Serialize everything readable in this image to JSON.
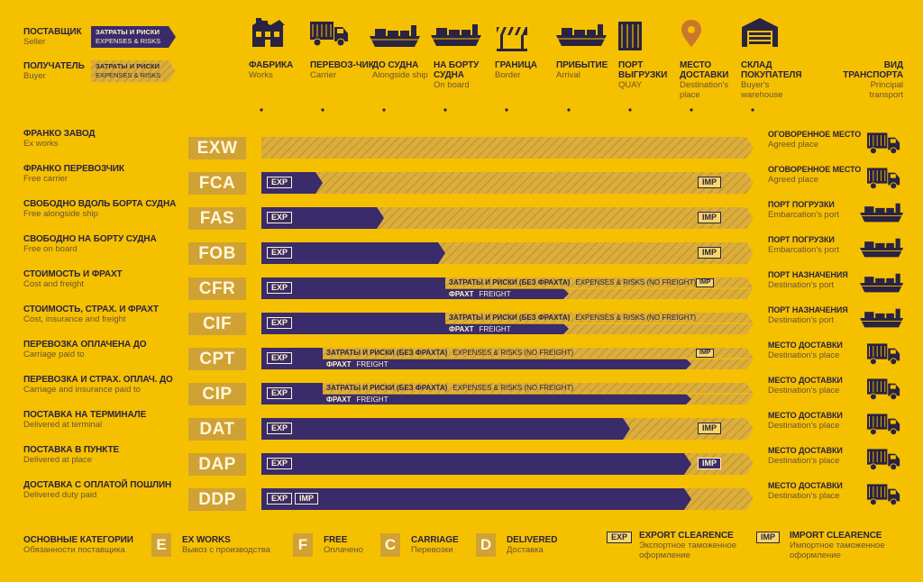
{
  "legend_top": {
    "seller": {
      "ru": "ПОСТАВЩИК",
      "en": "Seller"
    },
    "buyer": {
      "ru": "ПОЛУЧАТЕЛЬ",
      "en": "Buyer"
    },
    "tag_ru": "ЗАТРАТЫ И РИСКИ",
    "tag_en": "EXPENSES & RISKS"
  },
  "stages": [
    {
      "id": "works",
      "ru": "ФАБРИКА",
      "en": "Works",
      "icon": "factory-icon"
    },
    {
      "id": "carrier",
      "ru": "ПЕРЕВОЗ-ЧИК",
      "en": "Carrier",
      "icon": "truck-icon"
    },
    {
      "id": "alongside",
      "ru": "ДО СУДНА",
      "en": "Alongside ship",
      "icon": "ship-icon"
    },
    {
      "id": "onboard",
      "ru": "НА БОРТУ СУДНА",
      "en": "On board",
      "icon": "ship-icon"
    },
    {
      "id": "border",
      "ru": "ГРАНИЦА",
      "en": "Border",
      "icon": "barrier-icon"
    },
    {
      "id": "arrival",
      "ru": "ПРИБЫТИЕ",
      "en": "Arrival",
      "icon": "ship-icon"
    },
    {
      "id": "quay",
      "ru": "ПОРТ ВЫГРУЗКИ",
      "en": "QUAY",
      "icon": "container-icon"
    },
    {
      "id": "destination",
      "ru": "МЕСТО ДОСТАВКИ",
      "en": "Destination's place",
      "icon": "map-pin-icon"
    },
    {
      "id": "warehouse",
      "ru": "СКЛАД ПОКУПАТЕЛЯ",
      "en": "Buyer's warehouse",
      "icon": "warehouse-icon"
    }
  ],
  "transport_header": {
    "ru": "ВИД ТРАНСПОРТА",
    "en": "Principal transport"
  },
  "segment_labels": {
    "costs_ru": "ЗАТРАТЫ И РИСКИ (БЕЗ ФРАХТА)",
    "costs_en": "EXPENSES & RISKS (NO FREIGHT)",
    "freight_ru": "ФРАХТ",
    "freight_en": "FREIGHT",
    "exp": "EXP",
    "imp": "IMP"
  },
  "terms": [
    {
      "code": "EXW",
      "ru": "ФРАНКО ЗАВОД",
      "en": "Ex works",
      "seller_until": 0,
      "exp": false,
      "imp": false,
      "split": false,
      "dest_ru": "ОГОВОРЕННОЕ МЕСТО",
      "dest_en": "Agreed place",
      "transport": "truck-icon"
    },
    {
      "code": "FCA",
      "ru": "ФРАНКО ПЕРЕВОЗЧИК",
      "en": "Free carrier",
      "seller_until": 1,
      "exp": true,
      "imp": true,
      "split": false,
      "dest_ru": "ОГОВОРЕННОЕ МЕСТО",
      "dest_en": "Agreed place",
      "transport": "truck-icon"
    },
    {
      "code": "FAS",
      "ru": "СВОБОДНО ВДОЛЬ БОРТА СУДНА",
      "en": "Free alongside ship",
      "seller_until": 2,
      "exp": true,
      "imp": true,
      "split": false,
      "dest_ru": "ПОРТ ПОГРУЗКИ",
      "dest_en": "Embarcation's port",
      "transport": "ship-icon"
    },
    {
      "code": "FOB",
      "ru": "СВОБОДНО НА БОРТУ СУДНА",
      "en": "Free on board",
      "seller_until": 3,
      "exp": true,
      "imp": true,
      "split": false,
      "dest_ru": "ПОРТ ПОГРУЗКИ",
      "dest_en": "Embarcation's port",
      "transport": "ship-icon"
    },
    {
      "code": "CFR",
      "ru": "СТОИМОСТЬ И ФРАХТ",
      "en": "Cost and freight",
      "seller_until": 3,
      "exp": true,
      "imp": true,
      "split": true,
      "freight_until": 5,
      "dest_ru": "ПОРТ НАЗНАЧЕНИЯ",
      "dest_en": "Destination's port",
      "transport": "ship-icon"
    },
    {
      "code": "CIF",
      "ru": "СТОИМОСТЬ, СТРАХ. И ФРАХТ",
      "en": "Cost, insurance and freight",
      "seller_until": 3,
      "exp": true,
      "imp": false,
      "split": true,
      "freight_until": 5,
      "dest_ru": "ПОРТ НАЗНАЧЕНИЯ",
      "dest_en": "Destination's port",
      "transport": "ship-icon"
    },
    {
      "code": "CPT",
      "ru": "ПЕРЕВОЗКА ОПЛАЧЕНА ДО",
      "en": "Carriage paid to",
      "seller_until": 1,
      "exp": true,
      "imp": true,
      "split": true,
      "freight_until": 7,
      "dest_ru": "МЕСТО ДОСТАВКИ",
      "dest_en": "Destination's place",
      "transport": "truck-icon"
    },
    {
      "code": "CIP",
      "ru": "ПЕРЕВОЗКА И СТРАХ. ОПЛАЧ. ДО",
      "en": "Carriage and insurance paid to",
      "seller_until": 1,
      "exp": true,
      "imp": false,
      "split": true,
      "freight_until": 7,
      "dest_ru": "МЕСТО ДОСТАВКИ",
      "dest_en": "Destination's place",
      "transport": "truck-icon"
    },
    {
      "code": "DAT",
      "ru": "ПОСТАВКА НА ТЕРМИНАЛЕ",
      "en": "Delivered at terminal",
      "seller_until": 6,
      "exp": true,
      "imp": true,
      "split": false,
      "dest_ru": "МЕСТО ДОСТАВКИ",
      "dest_en": "Destination's place",
      "transport": "truck-icon"
    },
    {
      "code": "DAP",
      "ru": "ПОСТАВКА В ПУНКТЕ",
      "en": "Delivered at place",
      "seller_until": 7,
      "exp": true,
      "imp": true,
      "split": false,
      "dest_ru": "МЕСТО ДОСТАВКИ",
      "dest_en": "Destination's place",
      "transport": "truck-icon"
    },
    {
      "code": "DDP",
      "ru": "ДОСТАВКА С ОПЛАТОЙ ПОШЛИН",
      "en": "Delivered duty paid",
      "seller_until": 7,
      "exp": true,
      "imp": true,
      "imp_inline": true,
      "split": false,
      "dest_ru": "МЕСТО ДОСТАВКИ",
      "dest_en": "Destination's place",
      "transport": "truck-icon"
    }
  ],
  "legend_bottom": {
    "title_ru": "ОСНОВНЫЕ КАТЕГОРИИ",
    "title_en": "Обязанности поставщика",
    "categories": [
      {
        "letter": "E",
        "ru": "EX WORKS",
        "en": "Вывоз с производства"
      },
      {
        "letter": "F",
        "ru": "FREE",
        "en": "Оплачено"
      },
      {
        "letter": "C",
        "ru": "CARRIAGE",
        "en": "Перевозки"
      },
      {
        "letter": "D",
        "ru": "DELIVERED",
        "en": "Доставка"
      }
    ],
    "exp": {
      "tag": "EXP",
      "ru": "EXPORT CLEARENCE",
      "en": "Экспортное таможенное оформление"
    },
    "imp": {
      "tag": "IMP",
      "ru": "IMPORT CLEARENCE",
      "en": "Импортное таможенное оформление"
    }
  },
  "colors": {
    "background": "#f5c000",
    "seller": "#3a2b6b",
    "buyer": "#d7a93a",
    "code_box": "#d0a234"
  }
}
